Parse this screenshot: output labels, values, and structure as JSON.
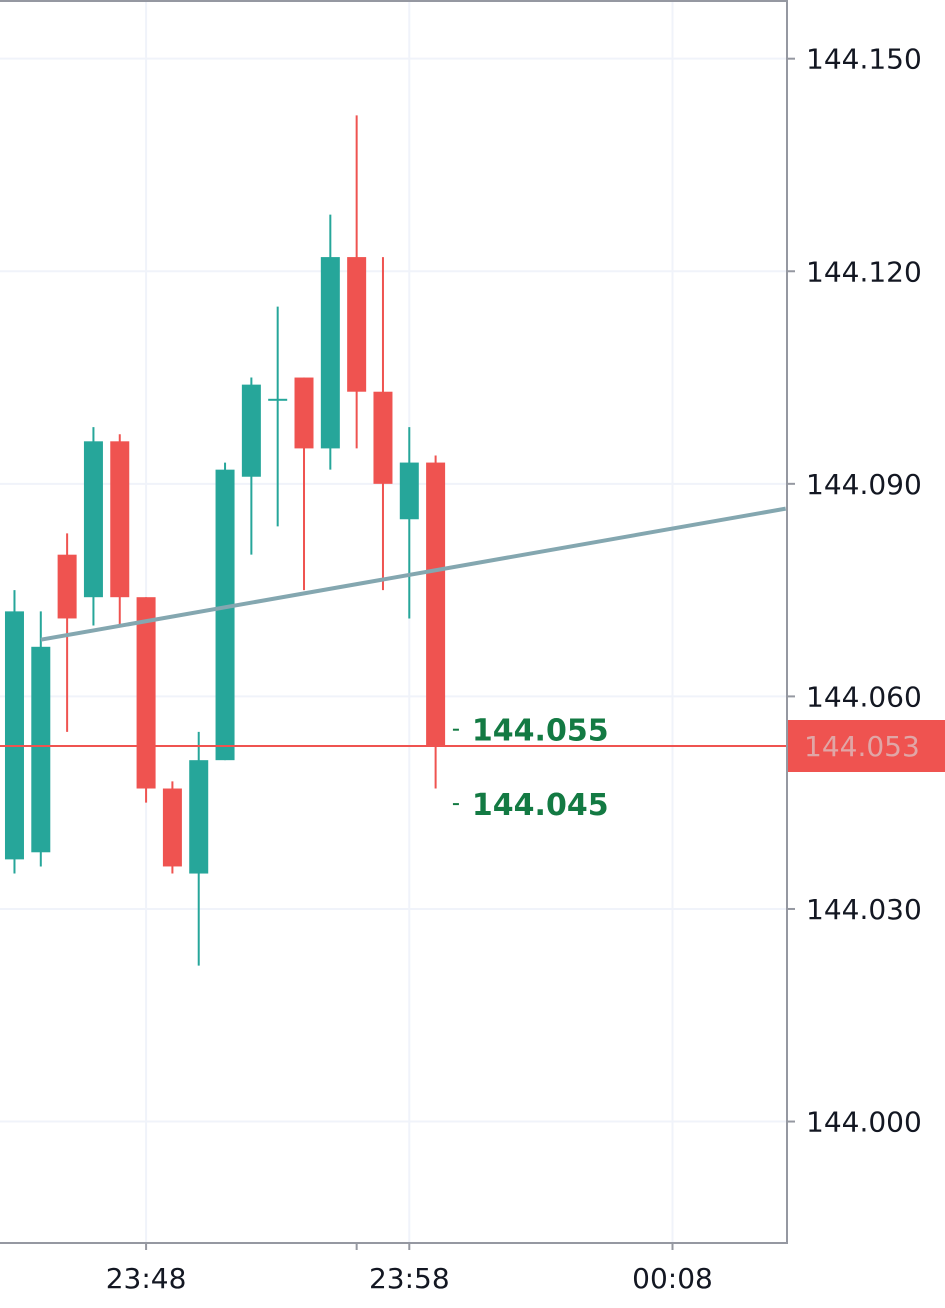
{
  "chart_data": {
    "type": "candlestick",
    "colors": {
      "up": "#26a69a",
      "down": "#ef5350",
      "grid": "#f0f3fa",
      "axis": "#9598a1",
      "trendline": "#84a7b0",
      "annotation": "#137a43",
      "price_tag_bg": "#ef5350",
      "price_tag_text": "#e0a6a6"
    },
    "yticks": [
      "144.150",
      "144.120",
      "144.090",
      "144.060",
      "144.030",
      "144.000"
    ],
    "ylim": [
      143.983,
      144.158
    ],
    "xticks": [
      {
        "label": "23:48",
        "time": 2
      },
      {
        "label": "23:58",
        "time": 12
      },
      {
        "label": "00:08",
        "time": 22
      }
    ],
    "xlim": [
      -3.55,
      26.35
    ],
    "candles": [
      {
        "time": -3,
        "open": 144.037,
        "high": 144.075,
        "low": 144.035,
        "close": 144.072
      },
      {
        "time": -2,
        "open": 144.038,
        "high": 144.072,
        "low": 144.036,
        "close": 144.067
      },
      {
        "time": -1,
        "open": 144.08,
        "high": 144.083,
        "low": 144.055,
        "close": 144.071
      },
      {
        "time": 0,
        "open": 144.074,
        "high": 144.098,
        "low": 144.07,
        "close": 144.096
      },
      {
        "time": 1,
        "open": 144.096,
        "high": 144.097,
        "low": 144.07,
        "close": 144.074
      },
      {
        "time": 2,
        "open": 144.074,
        "high": 144.074,
        "low": 144.045,
        "close": 144.047
      },
      {
        "time": 3,
        "open": 144.047,
        "high": 144.048,
        "low": 144.035,
        "close": 144.036
      },
      {
        "time": 4,
        "open": 144.035,
        "high": 144.055,
        "low": 144.022,
        "close": 144.051
      },
      {
        "time": 5,
        "open": 144.051,
        "high": 144.093,
        "low": 144.051,
        "close": 144.092
      },
      {
        "time": 6,
        "open": 144.091,
        "high": 144.105,
        "low": 144.08,
        "close": 144.104
      },
      {
        "time": 7,
        "open": 144.102,
        "high": 144.115,
        "low": 144.084,
        "close": 144.102
      },
      {
        "time": 8,
        "open": 144.105,
        "high": 144.105,
        "low": 144.075,
        "close": 144.095
      },
      {
        "time": 9,
        "open": 144.095,
        "high": 144.128,
        "low": 144.092,
        "close": 144.122
      },
      {
        "time": 10,
        "open": 144.122,
        "high": 144.142,
        "low": 144.095,
        "close": 144.103
      },
      {
        "time": 11,
        "open": 144.103,
        "high": 144.122,
        "low": 144.075,
        "close": 144.09
      },
      {
        "time": 12,
        "open": 144.085,
        "high": 144.098,
        "low": 144.071,
        "close": 144.093
      },
      {
        "time": 13,
        "open": 144.093,
        "high": 144.094,
        "low": 144.047,
        "close": 144.053
      }
    ],
    "trendline": {
      "from": {
        "time": -2,
        "price": 144.068
      },
      "to": {
        "time": 26.3,
        "price": 144.0865
      }
    },
    "last_price": {
      "value": 144.053,
      "label": "144.053"
    },
    "annotations": [
      {
        "label": "144.055",
        "price": 144.0553,
        "time": 14
      },
      {
        "label": "144.045",
        "price": 144.0448,
        "time": 14
      }
    ]
  }
}
